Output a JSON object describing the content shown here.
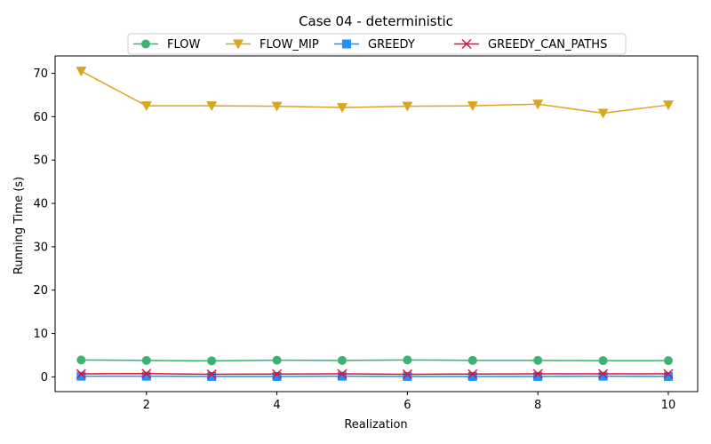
{
  "chart_data": {
    "type": "line",
    "title": "Case 04 - deterministic",
    "xlabel": "Realization",
    "ylabel": "Running Time (s)",
    "x": [
      1,
      2,
      3,
      4,
      5,
      6,
      7,
      8,
      9,
      10
    ],
    "xlim": [
      0.6,
      10.45
    ],
    "ylim": [
      -3.4,
      74
    ],
    "xticks": [
      2,
      4,
      6,
      8,
      10
    ],
    "yticks": [
      0,
      10,
      20,
      30,
      40,
      50,
      60,
      70
    ],
    "grid": false,
    "legend": {
      "placement": "top-center",
      "columns": 4
    },
    "series": [
      {
        "name": "FLOW",
        "color": "#3cb371",
        "marker": "circle",
        "values": [
          3.9,
          3.8,
          3.7,
          3.85,
          3.8,
          3.9,
          3.8,
          3.8,
          3.75,
          3.75
        ]
      },
      {
        "name": "FLOW_MIP",
        "color": "#daa520",
        "marker": "triangle-down",
        "values": [
          70.5,
          62.5,
          62.5,
          62.4,
          62.1,
          62.4,
          62.5,
          62.9,
          60.8,
          62.7
        ]
      },
      {
        "name": "GREEDY",
        "color": "#1e90ff",
        "marker": "square",
        "values": [
          0.15,
          0.15,
          0.1,
          0.1,
          0.15,
          0.1,
          0.1,
          0.1,
          0.15,
          0.1
        ]
      },
      {
        "name": "GREEDY_CAN_PATHS",
        "color": "#dc143c",
        "marker": "x",
        "values": [
          0.7,
          0.75,
          0.6,
          0.65,
          0.7,
          0.6,
          0.65,
          0.7,
          0.7,
          0.7
        ]
      }
    ]
  }
}
